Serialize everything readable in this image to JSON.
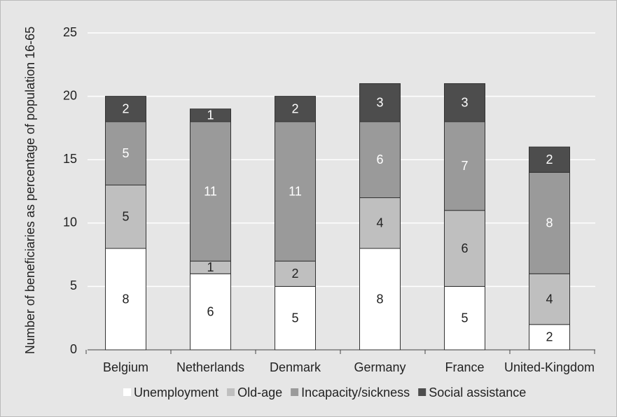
{
  "chart_data": {
    "type": "bar",
    "stacked": true,
    "y_label": "Number of beneficiaries as percentage of population 16-65",
    "categories": [
      "Belgium",
      "Netherlands",
      "Denmark",
      "Germany",
      "France",
      "United-Kingdom"
    ],
    "series": [
      {
        "name": "Unemployment",
        "color": "#ffffff",
        "values": [
          8,
          6,
          5,
          8,
          5,
          2
        ]
      },
      {
        "name": "Old-age",
        "color": "#bfbfbf",
        "values": [
          5,
          1,
          2,
          4,
          6,
          4
        ]
      },
      {
        "name": "Incapacity/sickness",
        "color": "#9a9a9a",
        "values": [
          5,
          11,
          11,
          6,
          7,
          8
        ]
      },
      {
        "name": "Social assistance",
        "color": "#4d4d4d",
        "values": [
          2,
          1,
          2,
          3,
          3,
          2
        ]
      }
    ],
    "ylim": [
      0,
      25
    ],
    "yticks": [
      0,
      5,
      10,
      15,
      20,
      25
    ],
    "grid": true,
    "legend": "bottom"
  }
}
